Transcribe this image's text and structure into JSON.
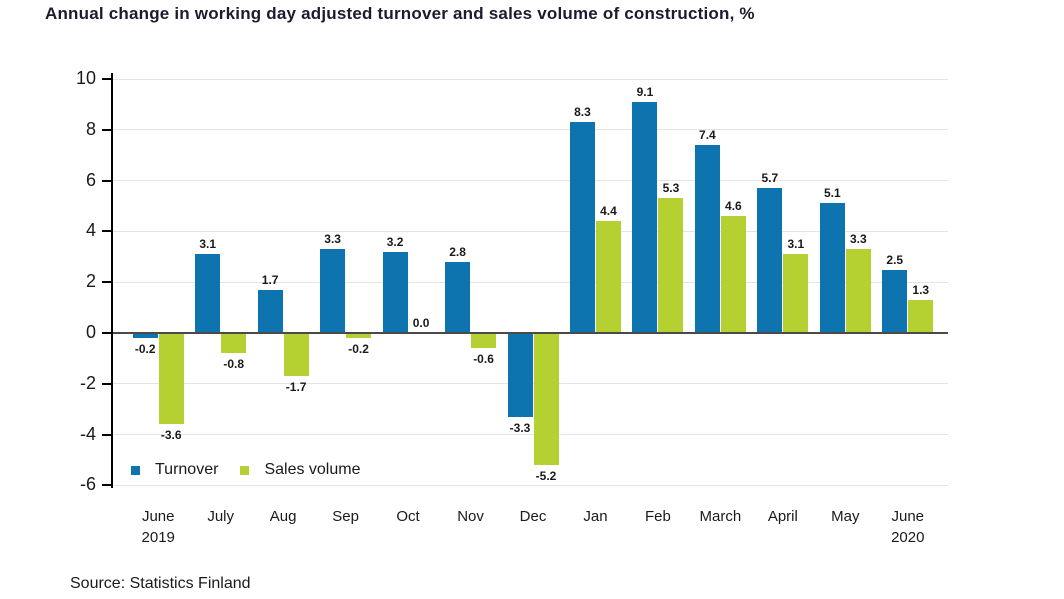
{
  "chart_data": {
    "type": "bar",
    "title": "Annual change in working day adjusted turnover and sales volume of construction, %",
    "categories": [
      [
        "June",
        "2019"
      ],
      [
        "July"
      ],
      [
        "Aug"
      ],
      [
        "Sep"
      ],
      [
        "Oct"
      ],
      [
        "Nov"
      ],
      [
        "Dec"
      ],
      [
        "Jan"
      ],
      [
        "Feb"
      ],
      [
        "March"
      ],
      [
        "April"
      ],
      [
        "May"
      ],
      [
        "June",
        "2020"
      ]
    ],
    "series": [
      {
        "name": "Turnover",
        "color": "#0e74b0",
        "values": [
          -0.2,
          3.1,
          1.7,
          3.3,
          3.2,
          2.8,
          -3.3,
          8.3,
          9.1,
          7.4,
          5.7,
          5.1,
          2.5
        ]
      },
      {
        "name": "Sales volume",
        "color": "#b4d031",
        "values": [
          -3.6,
          -0.8,
          -1.7,
          -0.2,
          0.0,
          -0.6,
          -5.2,
          4.4,
          5.3,
          4.6,
          3.1,
          3.3,
          1.3
        ]
      }
    ],
    "y_ticks": [
      10,
      8,
      6,
      4,
      2,
      0,
      -2,
      -4,
      -6
    ],
    "ylim": [
      -6.4,
      10.4
    ],
    "grid": true,
    "legend_position": "inside-bottom-left",
    "source": "Source: Statistics Finland",
    "colors": {
      "gridline": "#e4e4e4",
      "zero_line": "#4a4a4a",
      "axis_line": "#000000",
      "text": "#1a1a1a"
    }
  }
}
